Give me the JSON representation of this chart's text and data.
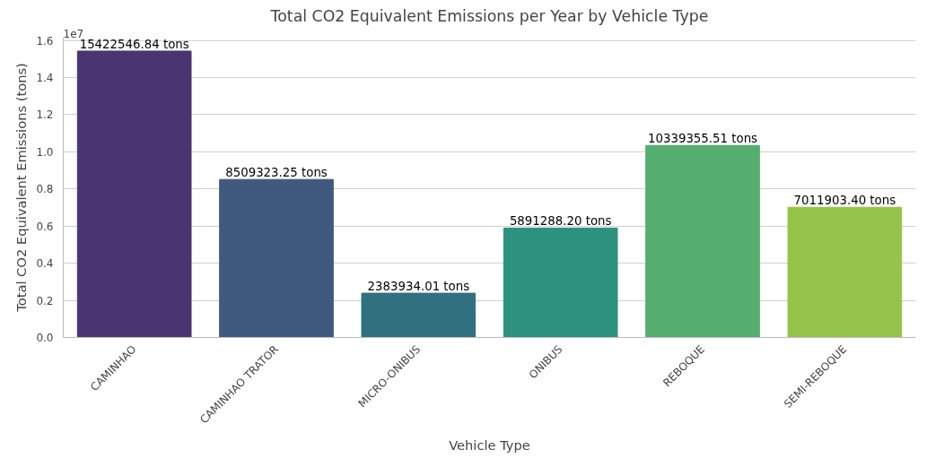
{
  "chart_data": {
    "type": "bar",
    "title": "Total CO2 Equivalent Emissions per Year by Vehicle Type",
    "xlabel": "Vehicle Type",
    "ylabel": "Total CO2 Equivalent Emissions (tons)",
    "categories": [
      "CAMINHAO",
      "CAMINHAO TRATOR",
      "MICRO-ONIBUS",
      "ONIBUS",
      "REBOQUE",
      "SEMI-REBOQUE"
    ],
    "values": [
      1.542254684,
      0.850932325,
      0.238393401,
      0.58912882,
      1.033935551,
      0.70119034
    ],
    "colors": [
      "#4a3572",
      "#40597f",
      "#31707e",
      "#2e9180",
      "#55ae6f",
      "#96c44a"
    ],
    "ylim": [
      0,
      1.617
    ],
    "yticks": [
      {
        "value": 0,
        "label": "0.0"
      },
      0.2,
      0.4,
      0.6,
      0.8,
      {
        "value": 1,
        "label": "1.0"
      },
      1.2,
      1.4,
      1.6
    ],
    "annotations": [
      "1e7",
      {
        "text": "15422546.84 tons",
        "x": "CAMINHAO",
        "y": 1.542254684
      },
      {
        "text": "8509323.25 tons",
        "x": "CAMINHAO TRATOR",
        "y": 0.850932325
      },
      {
        "text": "2383934.01 tons",
        "x": "MICRO-ONIBUS",
        "y": 0.238393401
      },
      {
        "text": "5891288.20 tons",
        "x": "ONIBUS",
        "y": 0.58912882
      },
      {
        "text": "10339355.51 tons",
        "x": "REBOQUE",
        "y": 1.033935551
      },
      {
        "text": "7011903.40 tons",
        "x": "SEMI-REBOQUE",
        "y": 0.70119034
      }
    ],
    "grid": "y"
  }
}
